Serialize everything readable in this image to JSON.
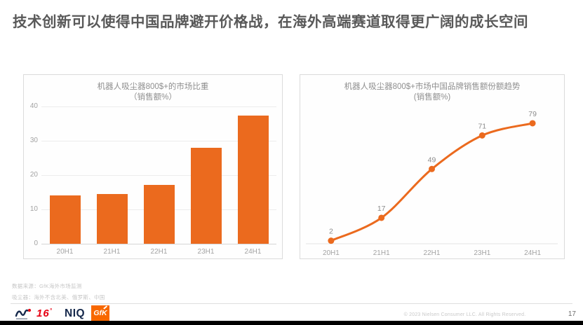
{
  "slide": {
    "title": "技术创新可以使得中国品牌避开价格战，在海外高端赛道取得更广阔的成长空间"
  },
  "chart_data": [
    {
      "type": "bar",
      "title": "机器人吸尘器800$+的市场比重",
      "subtitle": "（销售额%）",
      "categories": [
        "20H1",
        "21H1",
        "22H1",
        "23H1",
        "24H1"
      ],
      "values": [
        14,
        14.4,
        17.2,
        28,
        37.4
      ],
      "ylim": [
        0,
        40
      ],
      "yticks": [
        0,
        10,
        20,
        30,
        40
      ],
      "grid": true,
      "legend": "none",
      "color": "#EB6A1E"
    },
    {
      "type": "line",
      "title": "机器人吸尘器800$+市场中国品牌销售额份额趋势",
      "subtitle": "(销售额%)",
      "categories": [
        "20H1",
        "21H1",
        "22H1",
        "23H1",
        "24H1"
      ],
      "values": [
        2,
        17,
        49,
        71,
        79
      ],
      "data_labels": [
        "2",
        "17",
        "49",
        "71",
        "79"
      ],
      "ylim": [
        0,
        90
      ],
      "grid": false,
      "legend": "none",
      "color": "#EB6A1E"
    }
  ],
  "footer": {
    "footnotes": [
      "数据来源：GfK海外市场监测",
      "吸尘器：海外不含北美、俄罗斯、中国"
    ],
    "copyright": "© 2023 Nielsen Consumer LLC. All Rights Reserved.",
    "page_number": "17"
  },
  "logos": {
    "anniversary": "16",
    "anniversary_degree": "°",
    "niq": "NIQ",
    "gfk": "GfK"
  },
  "colors": {
    "accent_orange": "#EB6A1E",
    "gfk_orange": "#F86800",
    "niq_navy": "#16294C",
    "logo_red": "#E60012",
    "title_gray": "#595959"
  }
}
